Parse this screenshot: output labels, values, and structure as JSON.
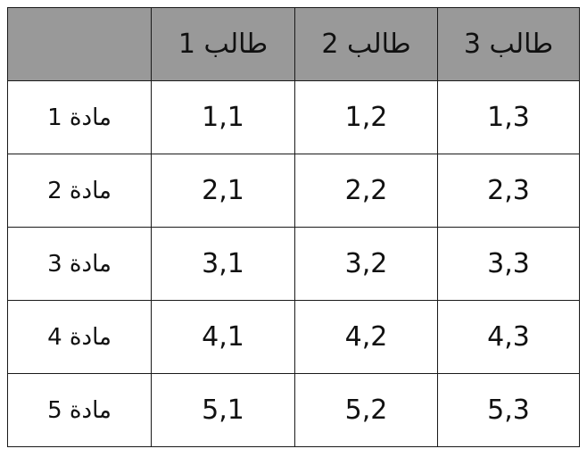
{
  "header": {
    "corner": "",
    "columns": [
      "طالب 1",
      "طالب 2",
      "طالب 3"
    ]
  },
  "rows": [
    {
      "label": "مادة 1",
      "cells": [
        "1,1",
        "1,2",
        "1,3"
      ]
    },
    {
      "label": "مادة 2",
      "cells": [
        "2,1",
        "2,2",
        "2,3"
      ]
    },
    {
      "label": "مادة 3",
      "cells": [
        "3,1",
        "3,2",
        "3,3"
      ]
    },
    {
      "label": "مادة 4",
      "cells": [
        "4,1",
        "4,2",
        "4,3"
      ]
    },
    {
      "label": "مادة 5",
      "cells": [
        "5,1",
        "5,2",
        "5,3"
      ]
    }
  ],
  "colors": {
    "header_background": "#999999",
    "border": "#1a1a1a"
  }
}
